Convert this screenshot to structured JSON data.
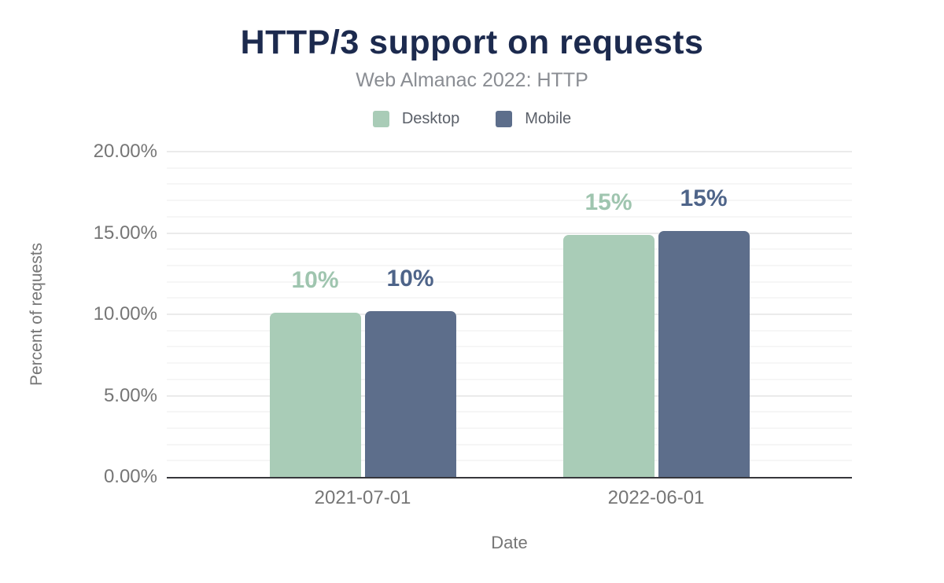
{
  "chart_data": {
    "type": "bar",
    "title": "HTTP/3 support on requests",
    "subtitle": "Web Almanac 2022: HTTP",
    "xlabel": "Date",
    "ylabel": "Percent of requests",
    "categories": [
      "2021-07-01",
      "2022-06-01"
    ],
    "series": [
      {
        "name": "Desktop",
        "color": "#a9ccb7",
        "label_color": "#9fc5af",
        "values": [
          10.1,
          14.9
        ],
        "labels": [
          "10%",
          "15%"
        ]
      },
      {
        "name": "Mobile",
        "color": "#5d6e8b",
        "label_color": "#4e6489",
        "values": [
          10.2,
          15.1
        ],
        "labels": [
          "10%",
          "15%"
        ]
      }
    ],
    "ylim": [
      0,
      20
    ],
    "yticks": [
      0,
      5,
      10,
      15,
      20
    ],
    "ytick_labels": [
      "0.00%",
      "5.00%",
      "10.00%",
      "15.00%",
      "20.00%"
    ],
    "minor_tick_step": 1,
    "grid": "horizontal",
    "legend_position": "top",
    "title_color": "#1c2a4e",
    "subtitle_color": "#8a8d93",
    "axis_text_color": "#767676",
    "axis_line_color": "#37373c",
    "background_color": "#ffffff"
  }
}
